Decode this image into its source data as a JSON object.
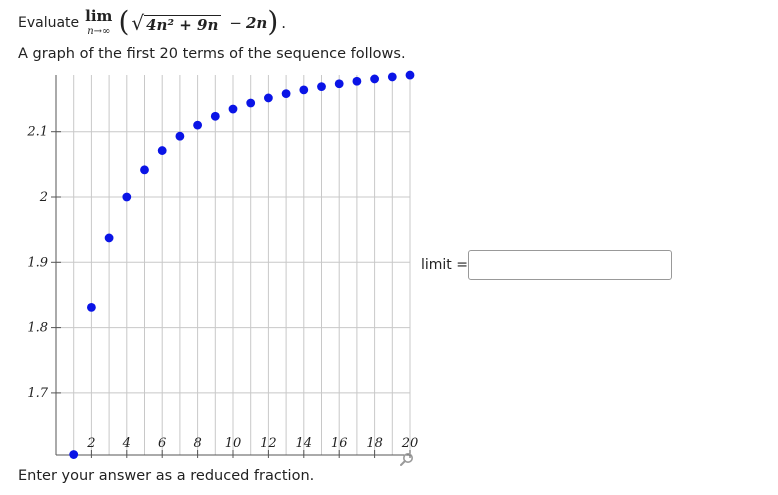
{
  "question": {
    "evaluate_word": "Evaluate",
    "lim_word": "lim",
    "lim_subscript": "n→∞",
    "open_paren": "(",
    "radical_sign": "√",
    "radicand": "4n² + 9n",
    "minus": "−",
    "term": "2n",
    "close_paren": ")",
    "period": ".",
    "graph_intro": "A graph of the first 20 terms of the sequence follows."
  },
  "answer": {
    "label": "limit =",
    "value": "",
    "placeholder": ""
  },
  "instructions": "Enter your answer as a reduced fraction.",
  "colors": {
    "point": "#0a14e6",
    "grid": "#c8c8c8",
    "axis": "#555555"
  },
  "icons": {
    "zoom": "zoom-magnifier-icon"
  },
  "chart_data": {
    "type": "scatter",
    "title": "",
    "xlabel": "",
    "ylabel": "",
    "x_ticks": [
      2,
      4,
      6,
      8,
      10,
      12,
      14,
      16,
      18,
      20
    ],
    "y_ticks": [
      1.7,
      1.8,
      1.9,
      2,
      2.1
    ],
    "y_tick_labels": [
      "1.7",
      "1.8",
      "1.9",
      "2",
      "2.1"
    ],
    "xlim": [
      0,
      20
    ],
    "ylim": [
      1.6,
      2.22
    ],
    "grid": true,
    "series": [
      {
        "x": [
          1,
          2,
          3,
          4,
          5,
          6,
          7,
          8,
          9,
          10,
          11,
          12,
          13,
          14,
          15,
          16,
          17,
          18,
          19,
          20
        ],
        "y": [
          1.6056,
          1.831,
          1.9373,
          2.0,
          2.0416,
          2.0711,
          2.0931,
          2.1101,
          2.1236,
          2.1347,
          2.1439,
          2.1517,
          2.1583,
          2.164,
          2.169,
          2.1734,
          2.1773,
          2.1808,
          2.1839,
          2.1867
        ]
      }
    ]
  }
}
